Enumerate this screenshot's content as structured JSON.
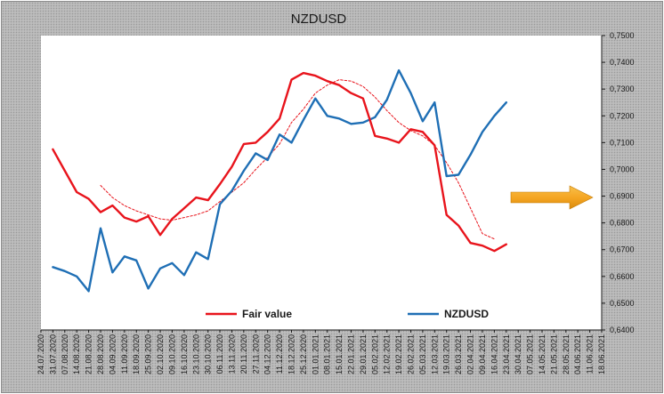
{
  "chart_data": {
    "type": "line",
    "title": "NZDUSD",
    "xlabel": "",
    "ylabel": "",
    "ylim": [
      0.64,
      0.75
    ],
    "yticks": [
      "0,6400",
      "0,6500",
      "0,6600",
      "0,6700",
      "0,6800",
      "0,6900",
      "0,7000",
      "0,7100",
      "0,7200",
      "0,7300",
      "0,7400",
      "0,7500"
    ],
    "x_tick_labels": [
      "24.07.2020",
      "31.07.2020",
      "07.08.2020",
      "14.08.2020",
      "21.08.2020",
      "28.08.2020",
      "04.09.2020",
      "11.09.2020",
      "18.09.2020",
      "25.09.2020",
      "02.10.2020",
      "09.10.2020",
      "16.10.2020",
      "23.10.2020",
      "30.10.2020",
      "06.11.2020",
      "13.11.2020",
      "20.11.2020",
      "27.11.2020",
      "04.12.2020",
      "11.12.2020",
      "18.12.2020",
      "25.12.2020",
      "01.01.2021",
      "08.01.2021",
      "15.01.2021",
      "22.01.2021",
      "29.01.2021",
      "05.02.2021",
      "12.02.2021",
      "19.02.2021",
      "26.02.2021",
      "05.03.2021",
      "12.03.2021",
      "19.03.2021",
      "26.03.2021",
      "02.04.2021",
      "09.04.2021",
      "16.04.2021",
      "23.04.2021",
      "30.04.2021",
      "07.05.2021",
      "14.05.2021",
      "21.05.2021",
      "28.05.2021",
      "04.06.2021",
      "11.06.2021",
      "18.06.2021"
    ],
    "grid": false,
    "legend": "bottom",
    "series": [
      {
        "name": "Fair value",
        "color": "#e8141c",
        "style": "solid",
        "values": [
          null,
          0.7075,
          0.6995,
          0.6915,
          0.689,
          0.684,
          0.6865,
          0.682,
          0.6805,
          0.6825,
          0.6755,
          0.6815,
          0.6855,
          0.6895,
          0.6885,
          0.6945,
          0.701,
          0.7095,
          0.71,
          0.714,
          0.719,
          0.7335,
          0.736,
          0.735,
          0.733,
          0.7315,
          0.7285,
          0.7265,
          0.7125,
          0.7115,
          0.71,
          0.715,
          0.714,
          0.709,
          0.683,
          0.679,
          0.6725,
          0.6715,
          0.6695,
          0.672,
          null,
          null,
          null,
          null,
          null,
          null,
          null,
          null
        ]
      },
      {
        "name": "NZDUSD",
        "color": "#1f6fb5",
        "style": "solid",
        "values": [
          null,
          0.6635,
          0.662,
          0.66,
          0.6545,
          0.678,
          0.6615,
          0.6675,
          0.666,
          0.6555,
          0.663,
          0.665,
          0.6605,
          0.669,
          0.6665,
          0.687,
          0.692,
          0.6995,
          0.706,
          0.7035,
          0.713,
          0.71,
          0.7185,
          0.7265,
          0.72,
          0.719,
          0.717,
          0.7175,
          0.7195,
          0.726,
          0.737,
          0.7285,
          0.718,
          0.725,
          0.6975,
          0.698,
          0.7055,
          0.714,
          0.72,
          0.725,
          null,
          null,
          null,
          null,
          null,
          null,
          null,
          null
        ]
      },
      {
        "name": "",
        "color": "#e8141c",
        "style": "dotted",
        "values": [
          null,
          null,
          null,
          null,
          null,
          0.694,
          0.6895,
          0.6865,
          0.6845,
          0.683,
          0.6815,
          0.681,
          0.682,
          0.683,
          0.6845,
          0.688,
          0.6915,
          0.695,
          0.7,
          0.7045,
          0.7095,
          0.7175,
          0.7225,
          0.7285,
          0.7315,
          0.7335,
          0.733,
          0.731,
          0.727,
          0.722,
          0.7175,
          0.7145,
          0.7125,
          0.709,
          0.7025,
          0.695,
          0.6855,
          0.676,
          0.674,
          null,
          null,
          null,
          null,
          null,
          null,
          null,
          null,
          null
        ]
      }
    ],
    "arrow": {
      "color": "#f5a623",
      "direction": "right"
    }
  }
}
